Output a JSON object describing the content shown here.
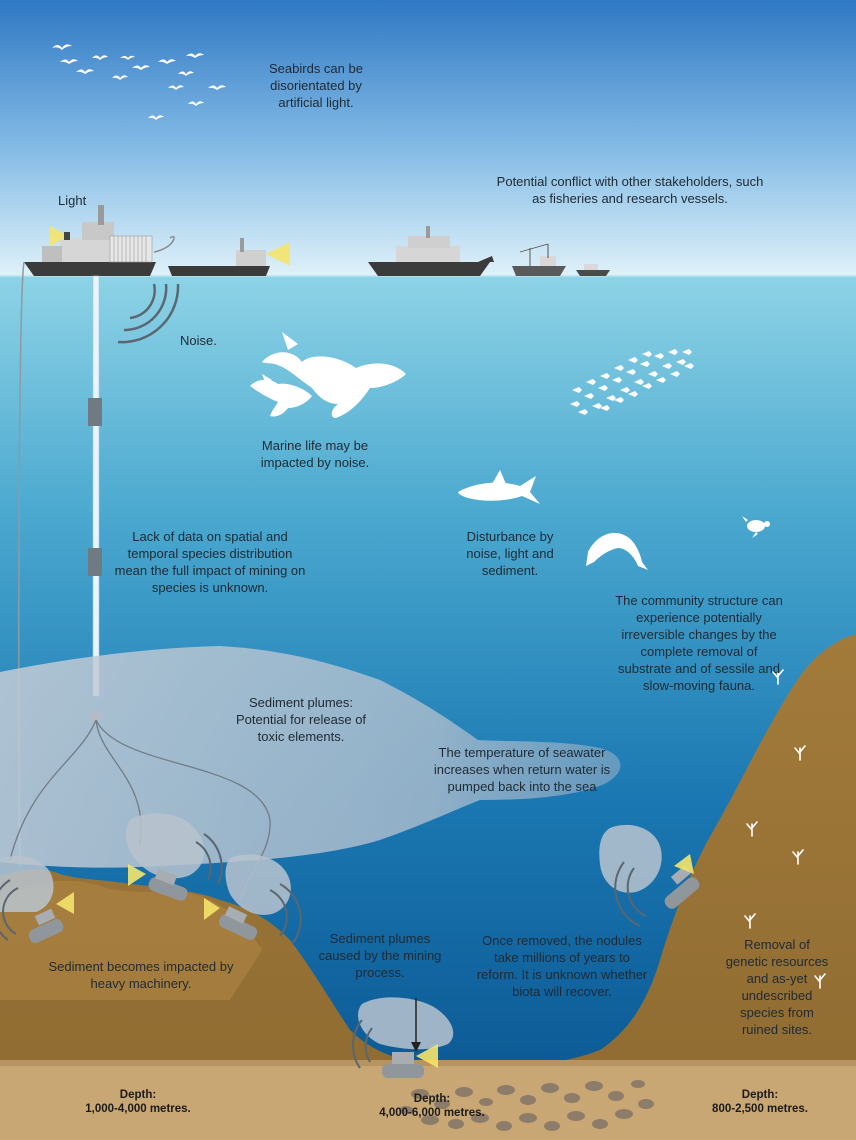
{
  "labels": {
    "seabirds": "Seabirds can be disorientated by artificial light.",
    "light": "Light",
    "conflict": "Potential conflict with other stakeholders, such as fisheries and research vessels.",
    "noise": "Noise.",
    "marine_life": "Marine life may be impacted by noise.",
    "lack_of_data": "Lack of data on spatial and temporal species distribution mean the full impact of mining on species is unknown.",
    "disturbance": "Disturbance by noise, light and sediment.",
    "community": "The community structure can experience potentially irreversible changes by the complete removal of substrate and of sessile and slow-moving fauna.",
    "plumes_toxic": "Sediment plumes: Potential for release of toxic elements.",
    "temperature": "The temperature of seawater increases when return water is pumped back into the sea",
    "sediment_impacted": "Sediment becomes impacted by heavy machinery.",
    "plumes_mining": "Sediment plumes caused by the mining process.",
    "nodules": "Once removed, the nodules take millions of years to reform. It is unknown whether biota will recover.",
    "genetic": "Removal of genetic resources and as-yet undescribed species from ruined sites."
  },
  "depths": [
    {
      "title": "Depth:",
      "range": "1,000-4,000 metres."
    },
    {
      "title": "Depth:",
      "range": "4,000-6,000 metres."
    },
    {
      "title": "Depth:",
      "range": "800-2,500 metres."
    }
  ],
  "colors": {
    "sky_top": "#2f78c4",
    "sky_bottom": "#d9eef8",
    "sea_surface": "#7ec9df",
    "sea_deep": "#0d5d98",
    "seabed": "#a07a3c",
    "plume": "#b7c2cf"
  }
}
